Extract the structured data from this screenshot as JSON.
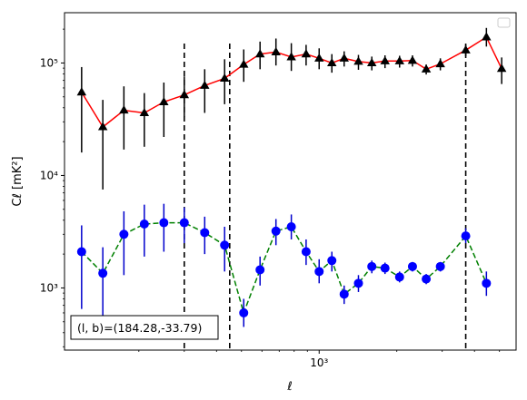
{
  "chart_data": {
    "type": "scatter",
    "xlabel": "ℓ",
    "ylabel": "Cℓ  [mK²]",
    "x_scale": "log",
    "y_scale": "log",
    "xlim": [
      103,
      5800
    ],
    "ylim": [
      280,
      280000
    ],
    "x_ticks": [
      {
        "value": 1000,
        "label": "10³"
      }
    ],
    "y_ticks": [
      {
        "value": 1000,
        "label": "10³"
      },
      {
        "value": 10000,
        "label": "10⁴"
      },
      {
        "value": 100000,
        "label": "10⁵"
      }
    ],
    "grid": false,
    "legend": {
      "placement": "top-right",
      "entries": []
    },
    "annotation": "(l, b)=(184.28,-33.79)",
    "vlines": [
      300,
      450,
      3700
    ],
    "series": [
      {
        "color": "#ff0000",
        "marker": "triangle",
        "marker_color": "#000000",
        "errorbar_color": "#000000",
        "linestyle": "solid",
        "points": [
          {
            "x": 120,
            "y": 55000,
            "lo": 16000,
            "hi": 92000
          },
          {
            "x": 145,
            "y": 27000,
            "lo": 7500,
            "hi": 47000
          },
          {
            "x": 175,
            "y": 38000,
            "lo": 17000,
            "hi": 62000
          },
          {
            "x": 210,
            "y": 36000,
            "lo": 18000,
            "hi": 54000
          },
          {
            "x": 250,
            "y": 45000,
            "lo": 22000,
            "hi": 67000
          },
          {
            "x": 300,
            "y": 52000,
            "lo": 33000,
            "hi": 76000
          },
          {
            "x": 360,
            "y": 63000,
            "lo": 36000,
            "hi": 88000
          },
          {
            "x": 430,
            "y": 73000,
            "lo": 43000,
            "hi": 108000
          },
          {
            "x": 510,
            "y": 97000,
            "lo": 68000,
            "hi": 132000
          },
          {
            "x": 590,
            "y": 120000,
            "lo": 88000,
            "hi": 155000
          },
          {
            "x": 680,
            "y": 125000,
            "lo": 95000,
            "hi": 165000
          },
          {
            "x": 780,
            "y": 113000,
            "lo": 85000,
            "hi": 150000
          },
          {
            "x": 890,
            "y": 120000,
            "lo": 95000,
            "hi": 145000
          },
          {
            "x": 1000,
            "y": 110000,
            "lo": 88000,
            "hi": 135000
          },
          {
            "x": 1120,
            "y": 100000,
            "lo": 82000,
            "hi": 120000
          },
          {
            "x": 1250,
            "y": 110000,
            "lo": 93000,
            "hi": 127000
          },
          {
            "x": 1420,
            "y": 103000,
            "lo": 87000,
            "hi": 118000
          },
          {
            "x": 1600,
            "y": 100000,
            "lo": 86000,
            "hi": 114000
          },
          {
            "x": 1800,
            "y": 104000,
            "lo": 90000,
            "hi": 117000
          },
          {
            "x": 2050,
            "y": 104000,
            "lo": 91000,
            "hi": 116000
          },
          {
            "x": 2300,
            "y": 105000,
            "lo": 93000,
            "hi": 117000
          },
          {
            "x": 2600,
            "y": 88000,
            "lo": 79000,
            "hi": 97000
          },
          {
            "x": 2950,
            "y": 98000,
            "lo": 86000,
            "hi": 110000
          },
          {
            "x": 3700,
            "y": 130000,
            "lo": 115000,
            "hi": 145000
          },
          {
            "x": 4450,
            "y": 170000,
            "lo": 140000,
            "hi": 205000
          },
          {
            "x": 5100,
            "y": 89000,
            "lo": 65000,
            "hi": 112000
          }
        ]
      },
      {
        "color": "#008000",
        "marker": "circle",
        "marker_color": "#0000ff",
        "errorbar_color": "#0000cc",
        "linestyle": "dashed",
        "points": [
          {
            "x": 120,
            "y": 2100,
            "lo": 650,
            "hi": 3600
          },
          {
            "x": 145,
            "y": 1350,
            "lo": 480,
            "hi": 2300
          },
          {
            "x": 175,
            "y": 3000,
            "lo": 1300,
            "hi": 4800
          },
          {
            "x": 210,
            "y": 3700,
            "lo": 1900,
            "hi": 5500
          },
          {
            "x": 250,
            "y": 3800,
            "lo": 2100,
            "hi": 5600
          },
          {
            "x": 300,
            "y": 3800,
            "lo": 2500,
            "hi": 5200
          },
          {
            "x": 360,
            "y": 3100,
            "lo": 2000,
            "hi": 4300
          },
          {
            "x": 430,
            "y": 2400,
            "lo": 1400,
            "hi": 3500
          },
          {
            "x": 510,
            "y": 600,
            "lo": 450,
            "hi": 800
          },
          {
            "x": 590,
            "y": 1450,
            "lo": 1050,
            "hi": 1900
          },
          {
            "x": 680,
            "y": 3200,
            "lo": 2400,
            "hi": 4100
          },
          {
            "x": 780,
            "y": 3500,
            "lo": 2700,
            "hi": 4500
          },
          {
            "x": 890,
            "y": 2100,
            "lo": 1600,
            "hi": 2700
          },
          {
            "x": 1000,
            "y": 1400,
            "lo": 1100,
            "hi": 1800
          },
          {
            "x": 1120,
            "y": 1750,
            "lo": 1400,
            "hi": 2100
          },
          {
            "x": 1250,
            "y": 880,
            "lo": 720,
            "hi": 1050
          },
          {
            "x": 1420,
            "y": 1100,
            "lo": 920,
            "hi": 1300
          },
          {
            "x": 1600,
            "y": 1550,
            "lo": 1350,
            "hi": 1750
          },
          {
            "x": 1800,
            "y": 1500,
            "lo": 1330,
            "hi": 1680
          },
          {
            "x": 2050,
            "y": 1250,
            "lo": 1120,
            "hi": 1400
          },
          {
            "x": 2300,
            "y": 1550,
            "lo": 1400,
            "hi": 1700
          },
          {
            "x": 2600,
            "y": 1200,
            "lo": 1080,
            "hi": 1330
          },
          {
            "x": 2950,
            "y": 1550,
            "lo": 1400,
            "hi": 1700
          },
          {
            "x": 3700,
            "y": 2900,
            "lo": 2500,
            "hi": 3400
          },
          {
            "x": 4450,
            "y": 1100,
            "lo": 850,
            "hi": 1400
          }
        ]
      }
    ]
  }
}
